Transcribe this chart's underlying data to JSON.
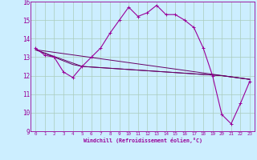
{
  "xlabel": "Windchill (Refroidissement éolien,°C)",
  "background_color": "#cceeff",
  "grid_color": "#aaccbb",
  "line_color": "#990099",
  "line_color2": "#660066",
  "xlim": [
    -0.5,
    23.5
  ],
  "ylim": [
    9,
    16
  ],
  "x_ticks": [
    0,
    1,
    2,
    3,
    4,
    5,
    6,
    7,
    8,
    9,
    10,
    11,
    12,
    13,
    14,
    15,
    16,
    17,
    18,
    19,
    20,
    21,
    22,
    23
  ],
  "y_ticks": [
    9,
    10,
    11,
    12,
    13,
    14,
    15,
    16
  ],
  "series1_x": [
    0,
    1,
    2,
    3,
    4,
    5,
    6,
    7,
    8,
    9,
    10,
    11,
    12,
    13,
    14,
    15,
    16,
    17,
    18,
    19,
    20,
    21,
    22,
    23
  ],
  "series1_y": [
    13.5,
    13.1,
    13.0,
    12.2,
    11.9,
    12.5,
    13.0,
    13.5,
    14.3,
    15.0,
    15.7,
    15.2,
    15.4,
    15.8,
    15.3,
    15.3,
    15.0,
    14.6,
    13.5,
    12.0,
    9.9,
    9.4,
    10.5,
    11.7
  ],
  "series2_x": [
    0,
    2,
    3,
    4,
    5,
    20,
    23
  ],
  "series2_y": [
    13.4,
    13.0,
    12.8,
    12.6,
    12.5,
    12.0,
    11.8
  ],
  "series3_x": [
    0,
    5,
    20,
    23
  ],
  "series3_y": [
    13.4,
    12.5,
    12.0,
    11.8
  ],
  "series4_x": [
    0,
    23
  ],
  "series4_y": [
    13.4,
    11.8
  ]
}
